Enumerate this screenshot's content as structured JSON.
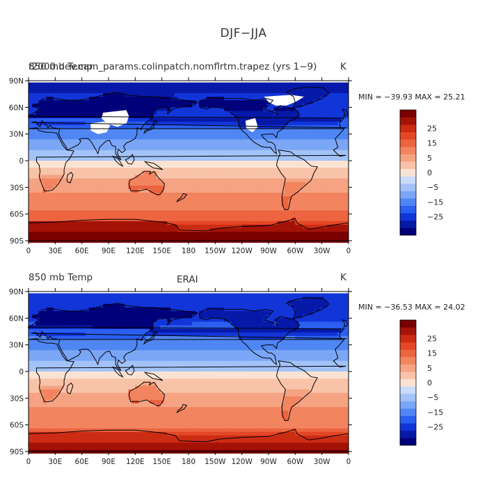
{
  "figure_title": "DJF−JJA",
  "colors": {
    "scale": [
      "#00007a",
      "#0619a8",
      "#1235d8",
      "#2a5ff0",
      "#4f86f4",
      "#7ba6f6",
      "#a3c3f8",
      "#c9dcfb",
      "#fbe3d4",
      "#f8c3a8",
      "#f5a383",
      "#f28460",
      "#ec6440",
      "#e34725",
      "#cc2c14",
      "#a51307",
      "#7a0000"
    ],
    "coast": "#000000",
    "masked": "#ffffff"
  },
  "chart_data": [
    {
      "type": "heatmap",
      "panel": "top",
      "title_left": "850 mb Temp",
      "title_overprint": "f2000.dev.cam_params.colinpatch.nomflrtm.trapez (yrs 1−9)",
      "title_right": "K",
      "stats": "MIN = −39.93  MAX =   25.21",
      "field": "DJF minus JJA 850 mb temperature (model)",
      "value_range": [
        -39.93,
        25.21
      ],
      "xlabel": "",
      "ylabel": "",
      "x_ticks": [
        "0",
        "30E",
        "60E",
        "90E",
        "120E",
        "150E",
        "180",
        "150W",
        "120W",
        "90W",
        "60W",
        "30W",
        "0"
      ],
      "y_ticks": [
        "90N",
        "60N",
        "30N",
        "0",
        "30S",
        "60S",
        "90S"
      ],
      "xlim": [
        0,
        360
      ],
      "ylim": [
        -90,
        90
      ],
      "colorbar_labels": [
        "25",
        "15",
        "5",
        "0",
        "−5",
        "−15",
        "−25"
      ],
      "colorbar_levels": [
        -30,
        -25,
        -20,
        -15,
        -10,
        -5,
        -2.5,
        0,
        2.5,
        5,
        7.5,
        10,
        12.5,
        15,
        20,
        25,
        30
      ]
    },
    {
      "type": "heatmap",
      "panel": "bottom",
      "title_left": "850 mb Temp",
      "title_center": "ERAI",
      "title_right": "K",
      "stats": "MIN = −36.53  MAX =   24.02",
      "field": "DJF minus JJA 850 mb temperature (ERA-Interim)",
      "value_range": [
        -36.53,
        24.02
      ],
      "xlabel": "",
      "ylabel": "",
      "x_ticks": [
        "0",
        "30E",
        "60E",
        "90E",
        "120E",
        "150E",
        "180",
        "150W",
        "120W",
        "90W",
        "60W",
        "30W",
        "0"
      ],
      "y_ticks": [
        "90N",
        "60N",
        "30N",
        "0",
        "30S",
        "60S",
        "90S"
      ],
      "xlim": [
        0,
        360
      ],
      "ylim": [
        -90,
        90
      ],
      "colorbar_labels": [
        "25",
        "15",
        "5",
        "0",
        "−5",
        "−15",
        "−25"
      ],
      "colorbar_levels": [
        -30,
        -25,
        -20,
        -15,
        -10,
        -5,
        -2.5,
        0,
        2.5,
        5,
        7.5,
        10,
        12.5,
        15,
        20,
        25,
        30
      ]
    }
  ]
}
